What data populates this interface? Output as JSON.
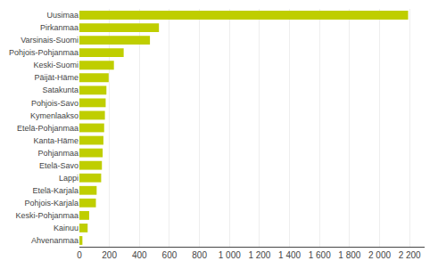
{
  "chart_data": {
    "type": "bar",
    "orientation": "horizontal",
    "categories": [
      "Ahvenanmaa",
      "Kainuu",
      "Keski-Pohjanmaa",
      "Pohjois-Karjala",
      "Etelä-Karjala",
      "Lappi",
      "Etelä-Savo",
      "Pohjanmaa",
      "Kanta-Häme",
      "Etelä-Pohjanmaa",
      "Kymenlaakso",
      "Pohjois-Savo",
      "Satakunta",
      "Päijät-Häme",
      "Keski-Suomi",
      "Pohjois-Pohjanmaa",
      "Varsinais-Suomi",
      "Pirkanmaa",
      "Uusimaa"
    ],
    "values": [
      20,
      55,
      65,
      110,
      115,
      145,
      150,
      155,
      160,
      165,
      170,
      175,
      180,
      195,
      230,
      295,
      470,
      530,
      2190
    ],
    "color": "#bfce00",
    "xlim": [
      0,
      2300
    ],
    "xticks": [
      0,
      200,
      400,
      600,
      800,
      {
        "value": 1000,
        "label": "1 000"
      },
      {
        "value": 1200,
        "label": "1 200"
      },
      {
        "value": 1400,
        "label": "1 400"
      },
      {
        "value": 1600,
        "label": "1 600"
      },
      {
        "value": 1800,
        "label": "1 800"
      },
      {
        "value": 2000,
        "label": "2 000"
      },
      {
        "value": 2200,
        "label": "2 200"
      }
    ],
    "grid": true
  }
}
